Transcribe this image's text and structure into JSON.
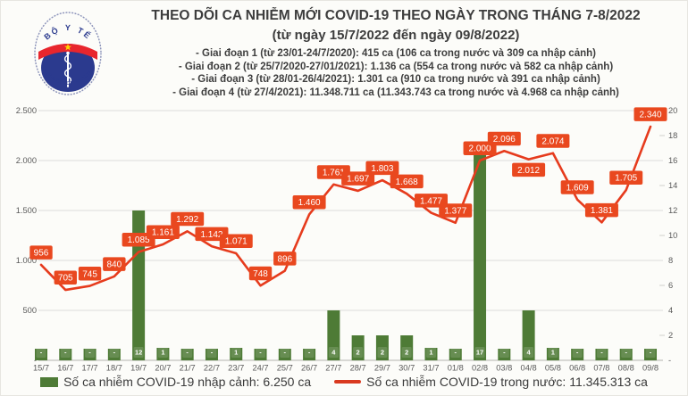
{
  "header": {
    "title": "THEO DÕI CA NHIỄM MỚI COVID-19 THEO NGÀY TRONG THÁNG 7-8/2022",
    "subtitle": "(từ ngày 15/7/2022 đến ngày 09/8/2022)",
    "bullets": [
      "- Giai đoạn 1 (từ 23/01-24/7/2020): 415 ca (106 ca trong nước và 309 ca nhập cảnh)",
      "- Giai đoạn 2 (từ 25/7/2020-27/01/2021): 1.136 ca (554 ca trong nước và 582 ca nhập cảnh)",
      "- Giai đoạn 3 (từ 28/01-26/4/2021): 1.301 ca (910 ca trong nước và 391 ca nhập cảnh)",
      "- Giai đoạn 4 (từ 27/4/2021): 11.348.711 ca (11.343.743 ca trong nước và 4.968 ca nhập cảnh)"
    ],
    "logo": {
      "top_text": "BỘ Y TẾ",
      "bottom_text": "MINISTRY OF HEALTH"
    }
  },
  "chart_data": {
    "type": "combo-bar-line",
    "categories": [
      "15/7",
      "16/7",
      "17/7",
      "18/7",
      "19/7",
      "20/7",
      "21/7",
      "22/7",
      "23/7",
      "24/7",
      "25/7",
      "26/7",
      "27/7",
      "28/7",
      "29/7",
      "30/7",
      "31/7",
      "01/8",
      "02/8",
      "03/8",
      "04/8",
      "05/8",
      "06/8",
      "07/8",
      "08/8",
      "09/8"
    ],
    "series": [
      {
        "name": "Số ca nhiễm COVID-19 nhập cảnh",
        "type": "bar",
        "axis": "right",
        "values": [
          0,
          0,
          0,
          0,
          12,
          1,
          0,
          0,
          1,
          0,
          0,
          0,
          4,
          2,
          2,
          2,
          1,
          0,
          17,
          0,
          4,
          1,
          0,
          0,
          0,
          0
        ],
        "labels": [
          "-",
          "-",
          "-",
          "-",
          "12",
          "1",
          "-",
          "-",
          "1",
          "-",
          "-",
          "-",
          "4",
          "2",
          "2",
          "2",
          "1",
          "-",
          "17",
          "-",
          "4",
          "1",
          "-",
          "-",
          "-",
          "-"
        ]
      },
      {
        "name": "Số ca nhiễm COVID-19 trong nước",
        "type": "line",
        "axis": "left",
        "values": [
          956,
          705,
          745,
          840,
          1085,
          1161,
          1292,
          1142,
          1071,
          748,
          896,
          1460,
          1761,
          1697,
          1803,
          1668,
          1477,
          1377,
          2000,
          2096,
          2012,
          2074,
          1609,
          1381,
          1705,
          2340
        ],
        "labels": [
          "956",
          "705",
          "745",
          "840",
          "1.085",
          "1.161",
          "1.292",
          "1.142",
          "1.071",
          "748",
          "896",
          "1.460",
          "1.761",
          "1.697",
          "1.803",
          "1.668",
          "1.477",
          "1.377",
          "2.000",
          "2.096",
          "2.012",
          "2.074",
          "1.609",
          "1.381",
          "1.705",
          "2.340"
        ]
      }
    ],
    "left_axis": {
      "min": 0,
      "max": 2500,
      "ticks": [
        {
          "label": "2.500",
          "value": 2500
        },
        {
          "label": "2.000",
          "value": 2000
        },
        {
          "label": "1.500",
          "value": 1500
        },
        {
          "label": "1.000",
          "value": 1000
        },
        {
          "label": "500",
          "value": 500
        },
        {
          "label": "-",
          "value": 0
        }
      ]
    },
    "right_axis": {
      "min": 0,
      "max": 20,
      "ticks": [
        {
          "label": "20",
          "value": 20
        },
        {
          "label": "18",
          "value": 18
        },
        {
          "label": "16",
          "value": 16
        },
        {
          "label": "14",
          "value": 14
        },
        {
          "label": "12",
          "value": 12
        },
        {
          "label": "10",
          "value": 10
        },
        {
          "label": "8",
          "value": 8
        },
        {
          "label": "6",
          "value": 6
        },
        {
          "label": "4",
          "value": 4
        },
        {
          "label": "2",
          "value": 2
        },
        {
          "label": "-",
          "value": 0
        }
      ]
    },
    "grid": true,
    "legend_position": "bottom",
    "label_below_indices": [
      20
    ]
  },
  "legend": {
    "items": [
      {
        "label": "Số ca nhiễm COVID-19 nhập cảnh: 6.250 ca",
        "swatch": "bar",
        "color": "#4e7b36"
      },
      {
        "label": "Số ca nhiễm COVID-19 trong nước: 11.345.313 ca",
        "swatch": "line",
        "color": "#d93a20"
      }
    ]
  },
  "colors": {
    "bar": "#4e7b36",
    "line": "#e63b1d",
    "label_box": "#e9481f",
    "grid": "#dddddb",
    "axis_baseline": "#c2c2be",
    "axis_text": "#595959",
    "title_text": "#3d3d3d",
    "logo_navy": "#2b3a8e",
    "logo_red": "#e8262d",
    "logo_star": "#ffd400"
  }
}
